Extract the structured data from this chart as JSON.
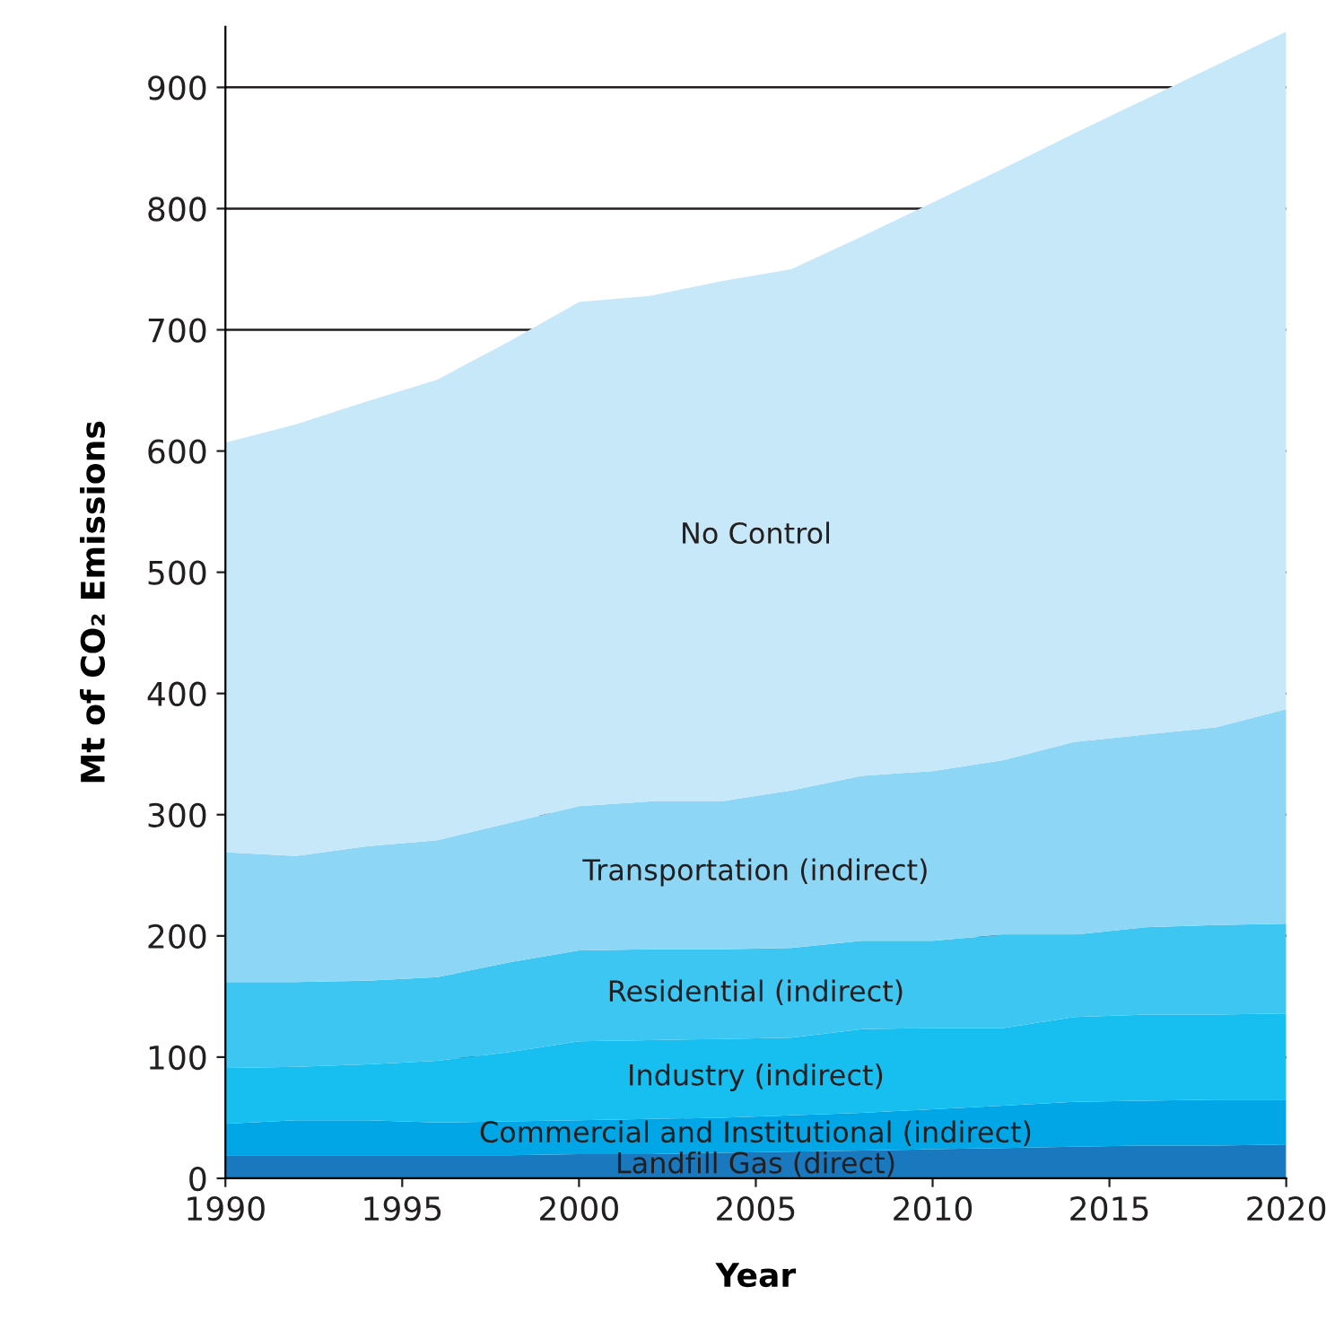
{
  "chart_data": {
    "type": "area",
    "stacked": true,
    "xlabel": "Year",
    "ylabel": "Mt of CO₂ Emissions",
    "x": [
      1990,
      1992,
      1994,
      1996,
      1998,
      2000,
      2002,
      2004,
      2006,
      2008,
      2010,
      2012,
      2014,
      2016,
      2018,
      2020
    ],
    "series": [
      {
        "name": "Landfill Gas (direct)",
        "color": "#1a78bf",
        "values": [
          19,
          19,
          19,
          19,
          19,
          20,
          20,
          21,
          22,
          23,
          24,
          25,
          26,
          27,
          27,
          28
        ]
      },
      {
        "name": "Commercial and Institutional (indirect)",
        "color": "#00a6e6",
        "values": [
          26,
          29,
          29,
          27,
          28,
          28,
          29,
          29,
          30,
          31,
          33,
          35,
          37,
          37,
          38,
          37
        ]
      },
      {
        "name": "Industry (indirect)",
        "color": "#17bff0",
        "values": [
          46,
          44,
          46,
          51,
          57,
          65,
          65,
          65,
          64,
          69,
          67,
          64,
          70,
          71,
          70,
          71
        ]
      },
      {
        "name": "Residential (indirect)",
        "color": "#3ec6f2",
        "values": [
          71,
          70,
          69,
          69,
          74,
          75,
          75,
          74,
          74,
          73,
          72,
          77,
          68,
          72,
          74,
          74
        ]
      },
      {
        "name": "Transportation (indirect)",
        "color": "#8dd6f5",
        "values": [
          107,
          104,
          111,
          113,
          115,
          119,
          122,
          122,
          130,
          136,
          140,
          144,
          159,
          159,
          163,
          177
        ]
      },
      {
        "name": "No Control",
        "color": "#c6e8f8",
        "values": [
          338,
          356,
          367,
          380,
          397,
          416,
          417,
          429,
          430,
          445,
          469,
          488,
          502,
          524,
          546,
          559
        ]
      }
    ],
    "xlim": [
      1990,
      2020
    ],
    "xticks": [
      1990,
      1995,
      2000,
      2005,
      2010,
      2015,
      2020
    ],
    "ylim": [
      0,
      950
    ],
    "yticks": [
      0,
      100,
      200,
      300,
      400,
      500,
      600,
      700,
      800,
      900
    ],
    "grid": "y",
    "legend": false
  }
}
